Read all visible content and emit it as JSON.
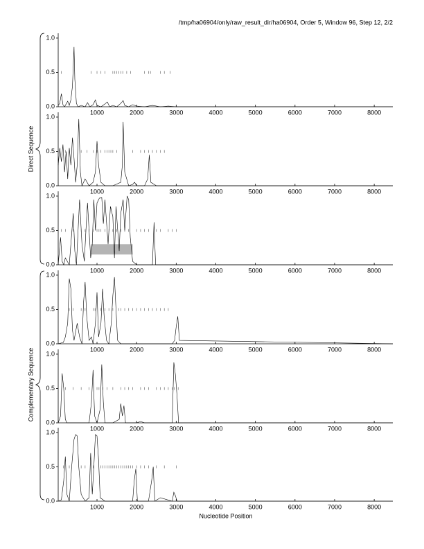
{
  "header": "/tmp/ha06904/only/raw_result_dir/ha06904, Order 5, Window 96, Step 12, 2/2",
  "groups": [
    "Direct Sequence",
    "Complementary Sequence"
  ],
  "x_label": "Nucleotide Position",
  "chart_data": [
    {
      "type": "line",
      "color": "#000000",
      "xlim": [
        20,
        8470
      ],
      "ylim": [
        0,
        1.07
      ],
      "xticks": [
        1000,
        2000,
        3000,
        4000,
        5000,
        6000,
        7000,
        8000
      ],
      "yticks": [
        {
          "value": 0,
          "label": "0.0"
        },
        0.5,
        {
          "value": 1,
          "label": "1.0"
        }
      ],
      "x": [
        20,
        60,
        100,
        140,
        180,
        220,
        260,
        300,
        340,
        380,
        420,
        440,
        480,
        520,
        600,
        700,
        760,
        820,
        900,
        960,
        1000,
        1100,
        1200,
        1260,
        1320,
        1400,
        1500,
        1600,
        1660,
        1700,
        1800,
        1900,
        2000,
        2200,
        2400,
        2600,
        2800,
        3000,
        3100,
        8470
      ],
      "values": [
        0.02,
        0.05,
        0.19,
        0.03,
        0.0,
        0.04,
        0.08,
        0.02,
        0.1,
        0.3,
        0.87,
        0.4,
        0.05,
        0.0,
        0.02,
        0.0,
        0.06,
        0.0,
        0.03,
        0.1,
        0.02,
        0.0,
        0.04,
        0.07,
        0.0,
        0.02,
        0.0,
        0.05,
        0.09,
        0.02,
        0.0,
        0.03,
        0.01,
        0.0,
        0.02,
        0.0,
        0.01,
        0.0,
        0.0,
        0.0
      ],
      "marker_y": 0.5,
      "markers": [
        100,
        850,
        1000,
        1100,
        1200,
        1400,
        1450,
        1500,
        1550,
        1600,
        1650,
        1750,
        1850,
        2200,
        2300,
        2350,
        2600,
        2700,
        2850
      ]
    },
    {
      "type": "line",
      "color": "#000000",
      "xlim": [
        20,
        8470
      ],
      "ylim": [
        0,
        1.07
      ],
      "xticks": [
        1000,
        2000,
        3000,
        4000,
        5000,
        6000,
        7000,
        8000
      ],
      "yticks": [
        {
          "value": 0,
          "label": "0.0"
        },
        0.5,
        {
          "value": 1,
          "label": "1.0"
        }
      ],
      "x": [
        20,
        60,
        100,
        140,
        180,
        220,
        260,
        300,
        340,
        380,
        420,
        460,
        500,
        540,
        580,
        620,
        660,
        700,
        800,
        900,
        960,
        1000,
        1040,
        1100,
        1200,
        1400,
        1600,
        1640,
        1660,
        1700,
        1800,
        1900,
        1950,
        2000,
        2200,
        2280,
        2320,
        2360,
        2500,
        3000,
        8470
      ],
      "values": [
        0.3,
        0.55,
        0.35,
        0.6,
        0.2,
        0.5,
        0.1,
        0.55,
        0.3,
        0.7,
        0.4,
        0.05,
        0.3,
        0.97,
        0.2,
        0.0,
        0.05,
        0.1,
        0.0,
        0.05,
        0.2,
        0.65,
        0.3,
        0.05,
        0.0,
        0.0,
        0.05,
        0.3,
        0.93,
        0.2,
        0.0,
        0.02,
        0.05,
        0.0,
        0.0,
        0.1,
        0.45,
        0.05,
        0.0,
        0.0,
        0.0
      ],
      "marker_y": 0.5,
      "markers": [
        200,
        300,
        600,
        750,
        900,
        1000,
        1100,
        1200,
        1250,
        1300,
        1350,
        1400,
        1500,
        1900,
        2100,
        2200,
        2300,
        2400,
        2500,
        2600,
        2700
      ]
    },
    {
      "type": "line",
      "color": "#000000",
      "xlim": [
        20,
        8470
      ],
      "ylim": [
        0,
        1.07
      ],
      "xticks": [
        1000,
        2000,
        3000,
        4000,
        5000,
        6000,
        7000,
        8000
      ],
      "yticks": [
        {
          "value": 0,
          "label": "0.0"
        },
        0.5,
        {
          "value": 1,
          "label": "1.0"
        }
      ],
      "x": [
        20,
        80,
        120,
        160,
        200,
        300,
        400,
        440,
        480,
        560,
        620,
        680,
        720,
        760,
        840,
        880,
        920,
        960,
        1000,
        1060,
        1120,
        1160,
        1200,
        1280,
        1340,
        1400,
        1440,
        1480,
        1560,
        1600,
        1660,
        1700,
        1760,
        1800,
        1840,
        1900,
        2000,
        2400,
        2440,
        2480,
        3000,
        8470
      ],
      "values": [
        0.0,
        0.4,
        0.05,
        0.0,
        0.1,
        0.0,
        0.75,
        0.2,
        0.0,
        0.95,
        0.3,
        0.05,
        0.5,
        0.9,
        0.1,
        0.3,
        0.95,
        0.5,
        0.9,
        0.97,
        0.98,
        0.6,
        0.95,
        0.3,
        0.85,
        0.7,
        0.1,
        0.85,
        0.2,
        0.75,
        0.95,
        0.5,
        1.0,
        0.95,
        0.4,
        0.05,
        0.0,
        0.0,
        0.62,
        0.0,
        0.0,
        0.0
      ],
      "marker_y": 0.5,
      "markers": [
        100,
        200,
        400,
        600,
        700,
        800,
        900,
        1000,
        1050,
        1100,
        1200,
        1300,
        1400,
        1500,
        1600,
        1700,
        1800,
        2000,
        2100,
        2200,
        2300,
        2500,
        2600,
        2800,
        2900,
        3000
      ],
      "region": {
        "x": [
          850,
          1900
        ],
        "y": [
          0.15,
          0.3
        ],
        "color": "#b4b4b4"
      }
    },
    {
      "type": "line",
      "color": "#000000",
      "xlim": [
        20,
        8470
      ],
      "ylim": [
        0,
        1.07
      ],
      "xticks": [
        1000,
        2000,
        3000,
        4000,
        5000,
        6000,
        7000,
        8000
      ],
      "yticks": [
        {
          "value": 0,
          "label": "0.0"
        },
        0.5,
        {
          "value": 1,
          "label": "1.0"
        }
      ],
      "x": [
        20,
        150,
        200,
        260,
        300,
        340,
        380,
        420,
        500,
        560,
        620,
        660,
        700,
        740,
        800,
        860,
        900,
        960,
        1000,
        1040,
        1100,
        1140,
        1180,
        1240,
        1300,
        1360,
        1400,
        1440,
        1480,
        1520,
        1600,
        2000,
        2900,
        2960,
        3000,
        3040,
        3080,
        8470
      ],
      "values": [
        0.0,
        0.02,
        0.1,
        0.3,
        0.95,
        0.8,
        0.2,
        0.05,
        0.3,
        0.1,
        0.0,
        0.6,
        0.9,
        0.4,
        0.05,
        0.1,
        0.0,
        0.3,
        0.75,
        0.1,
        0.3,
        0.8,
        0.4,
        0.05,
        0.0,
        0.3,
        0.7,
        0.97,
        0.5,
        0.05,
        0.0,
        0.0,
        0.0,
        0.05,
        0.25,
        0.4,
        0.05,
        0.0
      ],
      "marker_y": 0.5,
      "markers": [
        300,
        400,
        600,
        700,
        900,
        950,
        1100,
        1200,
        1300,
        1400,
        1550,
        1600,
        1700,
        1800,
        1900,
        2000,
        2100,
        2200,
        2300,
        2400,
        2500,
        2600,
        2700,
        2800
      ]
    },
    {
      "type": "line",
      "color": "#000000",
      "xlim": [
        20,
        8470
      ],
      "ylim": [
        0,
        1.07
      ],
      "xticks": [
        1000,
        2000,
        3000,
        4000,
        5000,
        6000,
        7000,
        8000
      ],
      "yticks": [
        {
          "value": 0,
          "label": "0.0"
        },
        0.5,
        {
          "value": 1,
          "label": "1.0"
        }
      ],
      "x": [
        20,
        80,
        120,
        160,
        200,
        240,
        400,
        800,
        860,
        900,
        940,
        1000,
        1080,
        1120,
        1160,
        1200,
        1400,
        1560,
        1600,
        1640,
        1680,
        1720,
        2000,
        2100,
        2200,
        2900,
        2940,
        2980,
        3020,
        3060,
        8470
      ],
      "values": [
        0.0,
        0.1,
        0.72,
        0.5,
        0.05,
        0.0,
        0.0,
        0.0,
        0.3,
        0.77,
        0.1,
        0.0,
        0.2,
        0.85,
        0.3,
        0.0,
        0.0,
        0.05,
        0.28,
        0.1,
        0.25,
        0.0,
        0.0,
        0.02,
        0.0,
        0.0,
        0.88,
        0.7,
        0.4,
        0.0,
        0.0
      ],
      "marker_y": 0.5,
      "markers": [
        200,
        400,
        600,
        800,
        1000,
        1050,
        1150,
        1250,
        1400,
        1600,
        1700,
        1800,
        1900,
        2100,
        2200,
        2300,
        2500,
        2600,
        2700,
        2800,
        2900,
        2950,
        3050
      ]
    },
    {
      "type": "line",
      "color": "#000000",
      "xlim": [
        20,
        8470
      ],
      "ylim": [
        0,
        1.07
      ],
      "xticks": [
        1000,
        2000,
        3000,
        4000,
        5000,
        6000,
        7000,
        8000
      ],
      "yticks": [
        {
          "value": 0,
          "label": "0.0"
        },
        0.5,
        {
          "value": 1,
          "label": "1.0"
        }
      ],
      "x": [
        20,
        100,
        160,
        200,
        240,
        300,
        360,
        420,
        460,
        500,
        540,
        600,
        700,
        800,
        840,
        880,
        920,
        960,
        1000,
        1040,
        1080,
        1200,
        1900,
        1940,
        1980,
        2020,
        2300,
        2380,
        2420,
        2460,
        2600,
        2900,
        2940,
        2980,
        3020,
        8470
      ],
      "values": [
        0.0,
        0.02,
        0.3,
        0.65,
        0.1,
        0.0,
        0.5,
        0.9,
        0.97,
        0.95,
        0.5,
        0.1,
        0.0,
        0.05,
        0.7,
        0.1,
        0.5,
        0.97,
        0.95,
        0.6,
        0.05,
        0.0,
        0.0,
        0.3,
        0.47,
        0.0,
        0.0,
        0.3,
        0.5,
        0.0,
        0.05,
        0.0,
        0.13,
        0.08,
        0.0,
        0.0
      ],
      "marker_y": 0.5,
      "markers": [
        150,
        300,
        600,
        700,
        900,
        1100,
        1150,
        1200,
        1250,
        1300,
        1350,
        1400,
        1450,
        1500,
        1550,
        1600,
        1650,
        1700,
        1750,
        1800,
        1850,
        1900,
        2000,
        2100,
        2200,
        2300,
        2500,
        2700,
        3000
      ]
    }
  ]
}
